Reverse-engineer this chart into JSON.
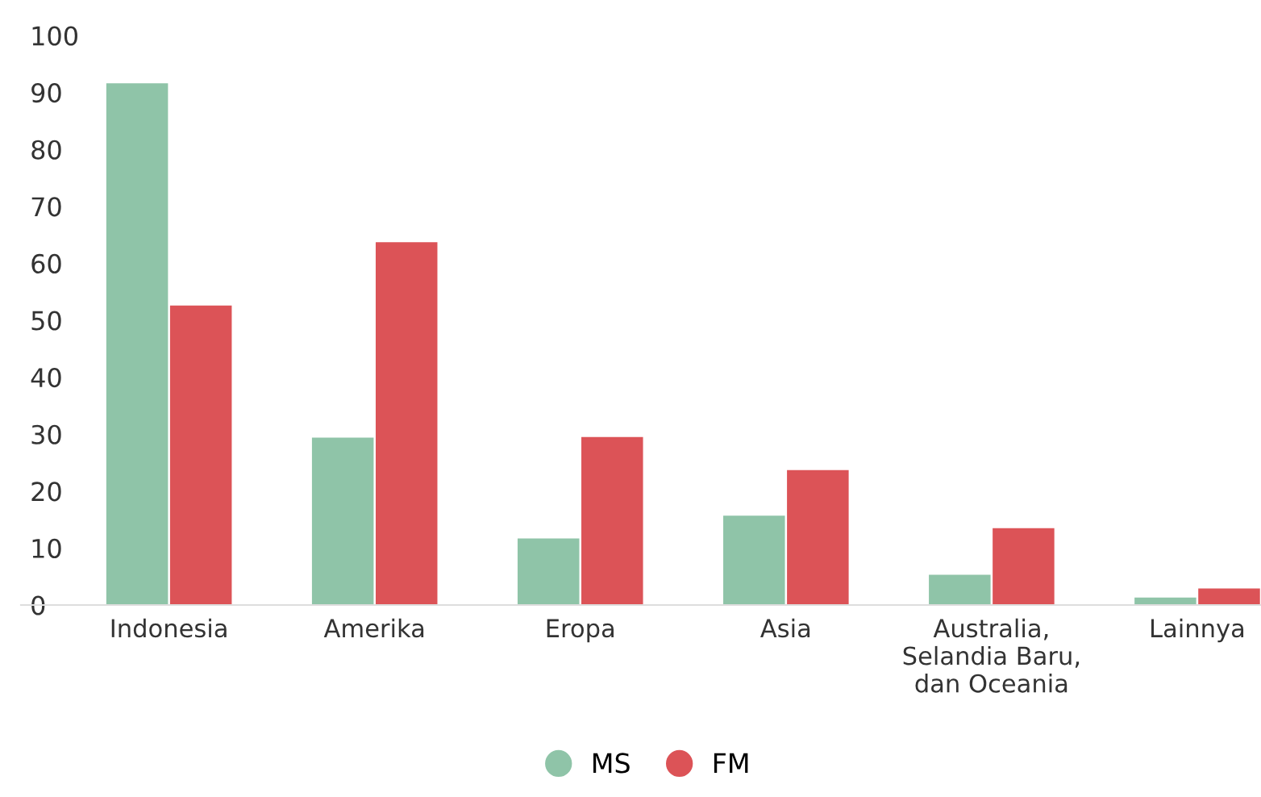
{
  "chart_data": {
    "type": "bar",
    "categories": [
      "Indonesia",
      "Amerika",
      "Eropa",
      "Asia",
      "Australia,\nSelandia Baru,\ndan Oceania",
      "Lainnya"
    ],
    "series": [
      {
        "name": "MS",
        "color": "#8fc4a8",
        "values": [
          91.6,
          29.4,
          11.7,
          15.7,
          5.3,
          1.3
        ]
      },
      {
        "name": "FM",
        "color": "#dc5357",
        "values": [
          52.6,
          63.7,
          29.5,
          23.7,
          13.5,
          2.9
        ]
      }
    ],
    "ylim": [
      0,
      100
    ],
    "yticks": [
      0,
      10,
      20,
      30,
      40,
      50,
      60,
      70,
      80,
      90,
      100
    ],
    "grid": false,
    "legend": "bottom"
  }
}
